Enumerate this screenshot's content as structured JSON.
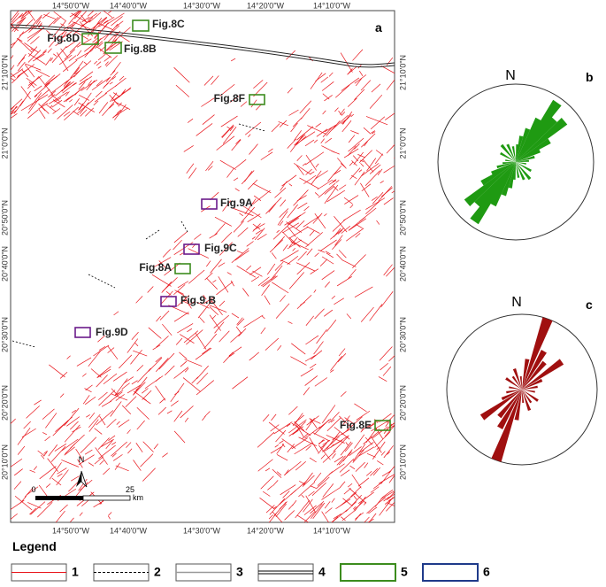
{
  "map": {
    "panel_label": "a",
    "top_lon_labels": [
      "14°50'0\"W",
      "14°40'0\"W",
      "14°30'0\"W",
      "14°20'0\"W",
      "14°10'0\"W"
    ],
    "bottom_lon_labels": [
      "14°50'0\"W",
      "14°40'0\"W",
      "14°30'0\"W",
      "14°20'0\"W",
      "14°10'0\"W"
    ],
    "left_lat_labels": [
      "21°10'0\"N",
      "21°0'0\"N",
      "20°50'0\"N",
      "20°40'0\"N",
      "20°30'0\"N",
      "20°20'0\"N",
      "20°10'0\"N"
    ],
    "right_lat_labels": [
      "21°10'0\"N",
      "21°0'0\"N",
      "20°50'0\"N",
      "20°40'0\"N",
      "20°30'0\"N",
      "20°20'0\"N",
      "20°10'0\"N"
    ],
    "figure_boxes": [
      "Fig.8C",
      "Fig.8D",
      "Fig.8B",
      "Fig.8F",
      "Fig.9A",
      "Fig.9C",
      "Fig.8A",
      "Fig.9.B",
      "Fig.9D",
      "Fig.8E"
    ],
    "scale_bar": {
      "start": "0",
      "end": "25",
      "unit": "km",
      "north": "N"
    }
  },
  "rose_b": {
    "panel_label": "b",
    "north": "N"
  },
  "rose_c": {
    "panel_label": "c",
    "north": "N"
  },
  "legend": {
    "title": "Legend",
    "items": [
      "1",
      "2",
      "3",
      "4",
      "5",
      "6"
    ]
  }
}
